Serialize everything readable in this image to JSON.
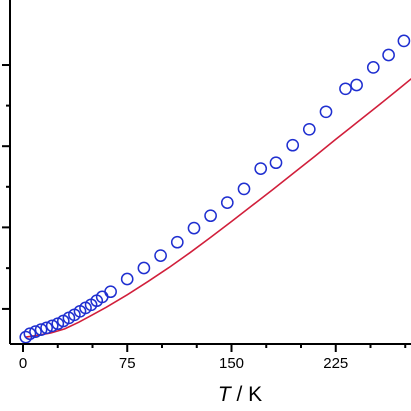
{
  "chart_data": {
    "type": "scatter",
    "xlabel_symbol": "T",
    "xlabel_unit": "/ K",
    "xlim": [
      0,
      283
    ],
    "ylim": [
      0,
      1
    ],
    "x_ticks": [
      0,
      75,
      150,
      225
    ],
    "y_ticks_normalized": [
      0.102,
      0.339,
      0.575,
      0.811
    ],
    "y_tick_labels_visible": false,
    "colors": {
      "experimental": "#1f2fd0",
      "fit": "#d11f3b",
      "axis": "#000000"
    },
    "series": [
      {
        "kind": "markers",
        "marker": "open-circle",
        "x": [
          2,
          5,
          9,
          13,
          17,
          21,
          25,
          29,
          33,
          37,
          41,
          45,
          49,
          53,
          57,
          63,
          75,
          87,
          99,
          111,
          123,
          135,
          147,
          159,
          171,
          182,
          194,
          206,
          218,
          232,
          240,
          252,
          263,
          274
        ],
        "y": [
          0.02,
          0.03,
          0.036,
          0.042,
          0.047,
          0.053,
          0.059,
          0.067,
          0.076,
          0.085,
          0.095,
          0.105,
          0.114,
          0.126,
          0.137,
          0.152,
          0.189,
          0.221,
          0.257,
          0.296,
          0.337,
          0.373,
          0.411,
          0.451,
          0.51,
          0.527,
          0.578,
          0.624,
          0.675,
          0.742,
          0.753,
          0.804,
          0.84,
          0.881
        ]
      },
      {
        "kind": "line",
        "x": [
          2,
          10,
          20,
          30,
          40,
          50,
          60,
          75,
          90,
          105,
          120,
          135,
          150,
          165,
          180,
          195,
          210,
          225,
          240,
          255,
          270,
          283
        ],
        "y": [
          0.02,
          0.025,
          0.032,
          0.044,
          0.063,
          0.085,
          0.107,
          0.143,
          0.182,
          0.222,
          0.265,
          0.31,
          0.356,
          0.403,
          0.45,
          0.498,
          0.546,
          0.595,
          0.643,
          0.691,
          0.74,
          0.783
        ]
      }
    ]
  }
}
